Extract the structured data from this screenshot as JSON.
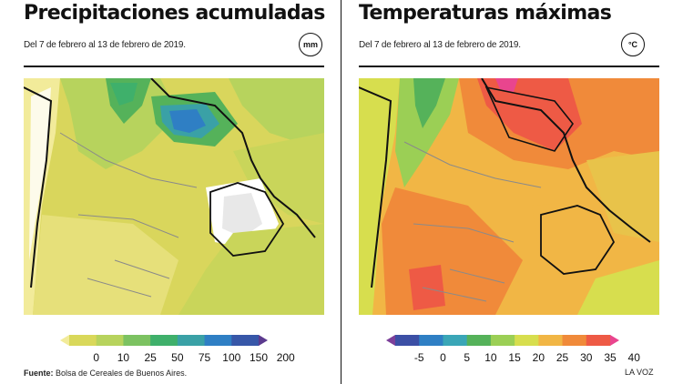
{
  "left": {
    "title": "Precipitaciones acumuladas",
    "date_range": "Del 7 de febrero al 13 de febrero de 2019.",
    "unit": "mm",
    "scale_labels": [
      "0",
      "10",
      "25",
      "50",
      "75",
      "100",
      "150",
      "200"
    ],
    "scale_colors": [
      "#f2eb9a",
      "#d9d85a",
      "#b7d35d",
      "#7cc261",
      "#3fb06b",
      "#3aa1a6",
      "#2f7fc4",
      "#3757a8",
      "#5b3a8e"
    ]
  },
  "right": {
    "title": "Temperaturas máximas",
    "date_range": "Del 7 de febrero al 13 de febrero de 2019.",
    "unit": "°C",
    "scale_labels": [
      "-5",
      "0",
      "5",
      "10",
      "15",
      "20",
      "25",
      "30",
      "35",
      "40"
    ],
    "scale_colors": [
      "#7c3f9a",
      "#3c4fa5",
      "#2f7fc4",
      "#3aa6b7",
      "#55b25a",
      "#9bcf55",
      "#d7de4e",
      "#f1b645",
      "#f08a3a",
      "#ee5a45",
      "#e9458e"
    ]
  },
  "footer": {
    "source_label": "Fuente:",
    "source_text": "Bolsa de Cereales de Buenos Aires.",
    "credit": "LA VOZ"
  }
}
